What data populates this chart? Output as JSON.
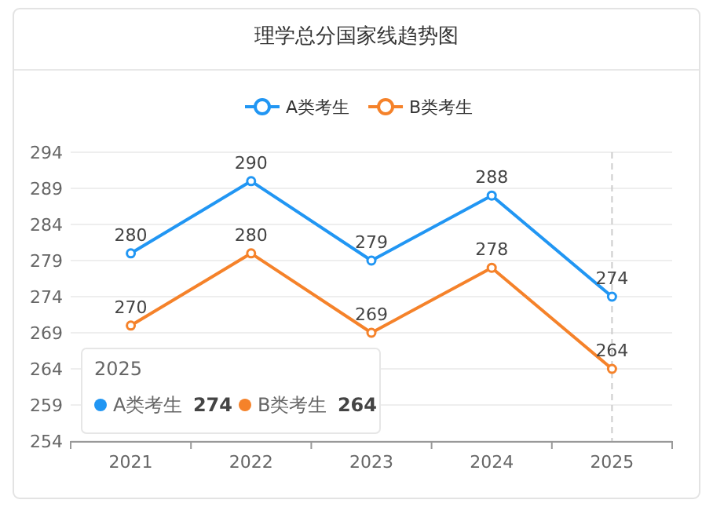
{
  "chart_data": {
    "type": "line",
    "title": "理学总分国家线趋势图",
    "categories": [
      "2021",
      "2022",
      "2023",
      "2024",
      "2025"
    ],
    "series": [
      {
        "name": "A类考生",
        "color": "#2196f3",
        "values": [
          280,
          290,
          279,
          288,
          274
        ]
      },
      {
        "name": "B类考生",
        "color": "#f5822a",
        "values": [
          270,
          280,
          269,
          278,
          264
        ]
      }
    ],
    "ylim": [
      254,
      294
    ],
    "yticks": [
      254,
      259,
      264,
      269,
      274,
      279,
      284,
      289,
      294
    ],
    "grid": "y",
    "legend": "top",
    "marker": "circle",
    "line_style": "solid",
    "data_labels": true,
    "annotations": [
      "274",
      "264"
    ],
    "ref_lines": [
      {
        "axis": "x",
        "value": "2025",
        "line_style": "dashed",
        "color": "#cccccc"
      }
    ]
  }
}
